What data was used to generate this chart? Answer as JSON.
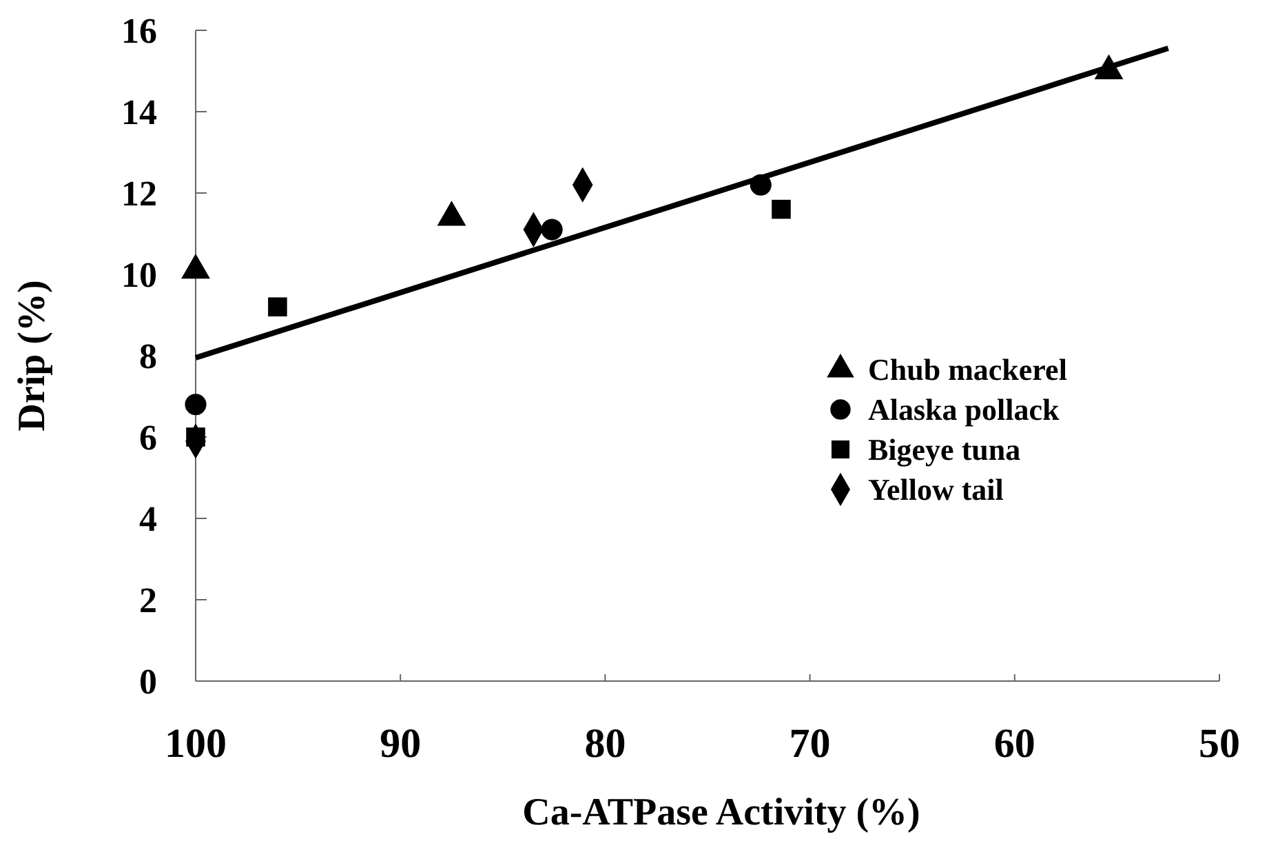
{
  "chart_data": {
    "type": "scatter",
    "xlabel": "Ca-ATPase Activity (%)",
    "ylabel": "Drip (%)",
    "xlim": [
      100,
      50
    ],
    "xticks": [
      100,
      90,
      80,
      70,
      60,
      50
    ],
    "ylim": [
      0,
      16
    ],
    "yticks": [
      0,
      2,
      4,
      6,
      8,
      10,
      12,
      14,
      16
    ],
    "grid": false,
    "legend": "right",
    "series": [
      {
        "name": "Chub mackerel",
        "color": "#000000",
        "marker": "triangle",
        "x": [
          100,
          87.5,
          55.4
        ],
        "values": [
          10.1,
          11.4,
          15.0
        ]
      },
      {
        "name": "Alaska pollack",
        "color": "#000000",
        "marker": "circle",
        "x": [
          100,
          82.6,
          72.4
        ],
        "values": [
          6.8,
          11.1,
          12.2
        ]
      },
      {
        "name": "Bigeye tuna",
        "color": "#000000",
        "marker": "square",
        "x": [
          100,
          96.0,
          71.4
        ],
        "values": [
          6.0,
          9.2,
          11.6
        ]
      },
      {
        "name": "Yellow tail",
        "color": "#000000",
        "marker": "diamond",
        "x": [
          100,
          83.5,
          81.1
        ],
        "values": [
          5.9,
          11.1,
          12.2
        ]
      },
      {
        "type": "line",
        "color": "#000000",
        "marker": "none",
        "line_style": "solid",
        "x": [
          100,
          52.5
        ],
        "values": [
          7.95,
          15.56
        ]
      }
    ]
  }
}
